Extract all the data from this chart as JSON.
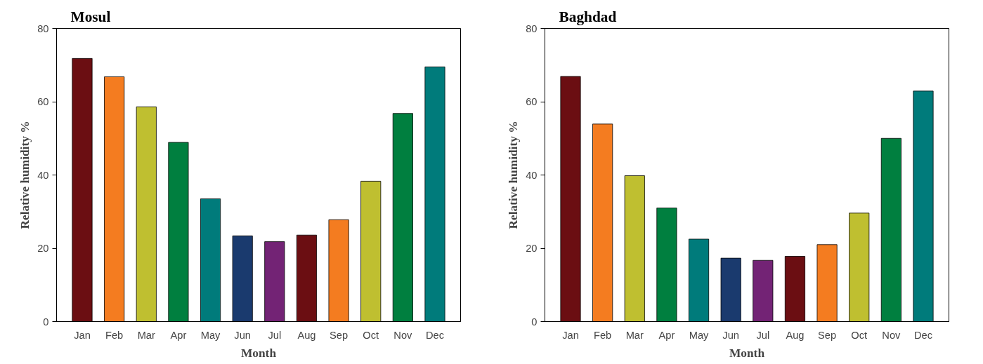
{
  "chart_data": [
    {
      "type": "bar",
      "title": "Mosul",
      "xlabel": "Month",
      "ylabel": "Relative humidity %",
      "categories": [
        "Jan",
        "Feb",
        "Mar",
        "Apr",
        "May",
        "Jun",
        "Jul",
        "Aug",
        "Sep",
        "Oct",
        "Nov",
        "Dec"
      ],
      "values": [
        71.8,
        66.8,
        58.6,
        48.9,
        33.5,
        23.4,
        21.8,
        23.6,
        27.8,
        38.3,
        56.8,
        69.5
      ],
      "colors": [
        "#6b0e12",
        "#f47c20",
        "#bfbf30",
        "#007f3f",
        "#007b7b",
        "#1a3a6e",
        "#732375",
        "#6b0e12",
        "#f47c20",
        "#bfbf30",
        "#007f3f",
        "#007b7b"
      ],
      "ylim": [
        0,
        80
      ],
      "yticks": [
        0,
        20,
        40,
        60,
        80
      ],
      "grid": false
    },
    {
      "type": "bar",
      "title": "Baghdad",
      "xlabel": "Month",
      "ylabel": "Relative humidity %",
      "categories": [
        "Jan",
        "Feb",
        "Mar",
        "Apr",
        "May",
        "Jun",
        "Jul",
        "Aug",
        "Sep",
        "Oct",
        "Nov",
        "Dec"
      ],
      "values": [
        66.9,
        53.9,
        39.8,
        31.0,
        22.5,
        17.3,
        16.7,
        17.8,
        21.0,
        29.6,
        50.0,
        62.9
      ],
      "colors": [
        "#6b0e12",
        "#f47c20",
        "#bfbf30",
        "#007f3f",
        "#007b7b",
        "#1a3a6e",
        "#732375",
        "#6b0e12",
        "#f47c20",
        "#bfbf30",
        "#007f3f",
        "#007b7b"
      ],
      "ylim": [
        0,
        80
      ],
      "yticks": [
        0,
        20,
        40,
        60,
        80
      ],
      "grid": false
    }
  ]
}
